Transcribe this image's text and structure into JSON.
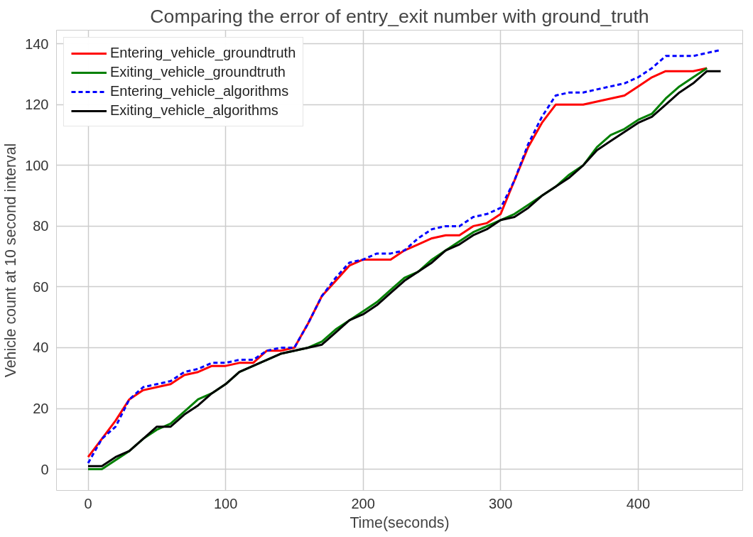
{
  "chart_data": {
    "type": "line",
    "title": "Comparing the error of entry_exit number with ground_truth",
    "xlabel": "Time(seconds)",
    "ylabel": "Vehicle count at 10 second interval",
    "xlim": [
      -23,
      476
    ],
    "ylim": [
      -7,
      144.5
    ],
    "xticks": [
      0,
      100,
      200,
      300,
      400
    ],
    "yticks": [
      0,
      20,
      40,
      60,
      80,
      100,
      120,
      140
    ],
    "grid": true,
    "legend": "top left",
    "series": [
      {
        "name": "Entering_vehicle_groundtruth",
        "color": "#ff0000",
        "line_style": "solid",
        "x": [
          0,
          10,
          20,
          30,
          40,
          50,
          60,
          70,
          80,
          90,
          100,
          110,
          120,
          130,
          140,
          150,
          160,
          170,
          180,
          190,
          200,
          210,
          220,
          230,
          240,
          250,
          260,
          270,
          280,
          290,
          300,
          310,
          320,
          330,
          340,
          350,
          360,
          370,
          380,
          390,
          400,
          410,
          420,
          430,
          440,
          450
        ],
        "values": [
          4,
          10,
          16,
          23,
          26,
          27,
          28,
          31,
          32,
          34,
          34,
          35,
          35,
          39,
          39,
          40,
          48,
          57,
          62,
          67,
          69,
          69,
          69,
          72,
          74,
          76,
          77,
          77,
          80,
          81,
          84,
          95,
          106,
          114,
          120,
          120,
          120,
          121,
          122,
          123,
          126,
          129,
          131,
          131,
          131,
          132
        ]
      },
      {
        "name": "Exiting_vehicle_groundtruth",
        "color": "#008000",
        "line_style": "solid",
        "x": [
          0,
          10,
          20,
          30,
          40,
          50,
          60,
          70,
          80,
          90,
          100,
          110,
          120,
          130,
          140,
          150,
          160,
          170,
          180,
          190,
          200,
          210,
          220,
          230,
          240,
          250,
          260,
          270,
          280,
          290,
          300,
          310,
          320,
          330,
          340,
          350,
          360,
          370,
          380,
          390,
          400,
          410,
          420,
          430,
          440,
          450
        ],
        "values": [
          0,
          0,
          3,
          6,
          10,
          13,
          15,
          19,
          23,
          25,
          28,
          32,
          34,
          36,
          38,
          39,
          40,
          42,
          46,
          49,
          52,
          55,
          59,
          63,
          65,
          69,
          72,
          75,
          78,
          80,
          82,
          84,
          87,
          90,
          93,
          97,
          100,
          106,
          110,
          112,
          115,
          117,
          122,
          126,
          129,
          132
        ]
      },
      {
        "name": "Entering_vehicle_algorithms",
        "color": "#0000ff",
        "line_style": "dashed",
        "x": [
          0,
          10,
          20,
          30,
          40,
          50,
          60,
          70,
          80,
          90,
          100,
          110,
          120,
          130,
          140,
          150,
          160,
          170,
          180,
          190,
          200,
          210,
          220,
          230,
          240,
          250,
          260,
          270,
          280,
          290,
          300,
          310,
          320,
          330,
          340,
          350,
          360,
          370,
          380,
          390,
          400,
          410,
          420,
          430,
          440,
          450,
          460
        ],
        "values": [
          2,
          10,
          14,
          23,
          27,
          28,
          29,
          32,
          33,
          35,
          35,
          36,
          36,
          39,
          40,
          40,
          48,
          57,
          63,
          68,
          69,
          71,
          71,
          72,
          76,
          79,
          80,
          80,
          83,
          84,
          86,
          95,
          107,
          116,
          123,
          124,
          124,
          125,
          126,
          127,
          129,
          132,
          136,
          136,
          136,
          137,
          138
        ]
      },
      {
        "name": "Exiting_vehicle_algorithms",
        "color": "#000000",
        "line_style": "solid",
        "x": [
          0,
          10,
          20,
          30,
          40,
          50,
          60,
          70,
          80,
          90,
          100,
          110,
          120,
          130,
          140,
          150,
          160,
          170,
          180,
          190,
          200,
          210,
          220,
          230,
          240,
          250,
          260,
          270,
          280,
          290,
          300,
          310,
          320,
          330,
          340,
          350,
          360,
          370,
          380,
          390,
          400,
          410,
          420,
          430,
          440,
          450,
          460
        ],
        "values": [
          1,
          1,
          4,
          6,
          10,
          14,
          14,
          18,
          21,
          25,
          28,
          32,
          34,
          36,
          38,
          39,
          40,
          41,
          45,
          49,
          51,
          54,
          58,
          62,
          65,
          68,
          72,
          74,
          77,
          79,
          82,
          83,
          86,
          90,
          93,
          96,
          100,
          105,
          108,
          111,
          114,
          116,
          120,
          124,
          127,
          131,
          131
        ]
      }
    ]
  }
}
